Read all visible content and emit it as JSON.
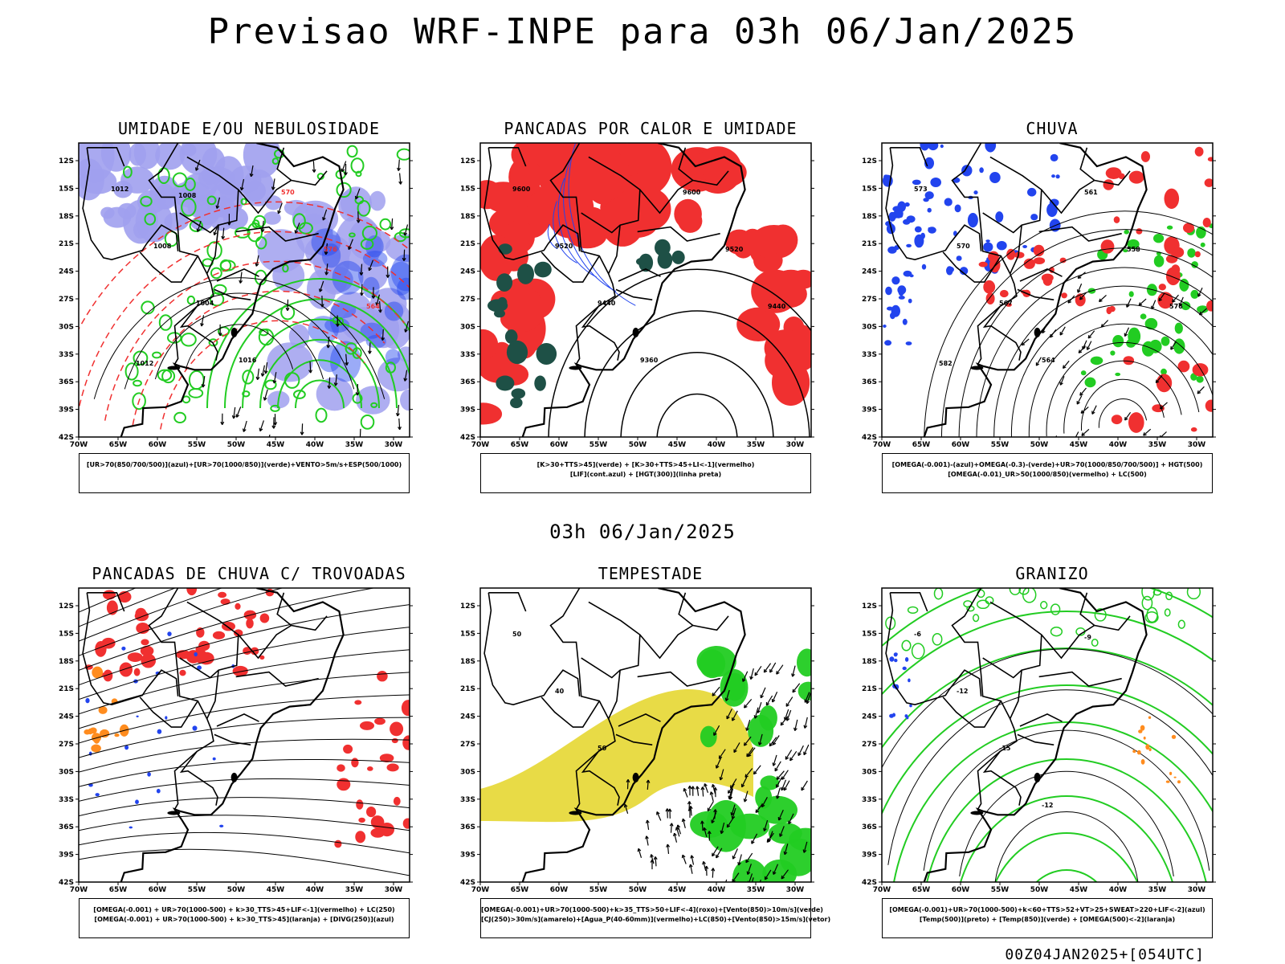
{
  "title": "Previsao WRF-INPE  para 03h 06/Jan/2025",
  "mid_title": "03h 06/Jan/2025",
  "footer": "00Z04JAN2025+[054UTC]",
  "axes": {
    "lat_ticks": [
      "12S",
      "15S",
      "18S",
      "21S",
      "24S",
      "27S",
      "30S",
      "33S",
      "36S",
      "39S",
      "42S"
    ],
    "lon_ticks": [
      "70W",
      "65W",
      "60W",
      "55W",
      "50W",
      "45W",
      "40W",
      "35W",
      "30W"
    ]
  },
  "colors": {
    "blue": "#2244ee",
    "light_blue": "#a0a0ee",
    "green": "#22cc22",
    "red": "#f03030",
    "dark_teal": "#1e5046",
    "yellow": "#e6d732",
    "orange": "#ff8c1e",
    "black": "#000000"
  },
  "panels": [
    {
      "title": "UMIDADE E/OU NEBULOSIDADE",
      "legend": [
        "[UR>70(850/700/500)](azul)+[UR>70(1000/850)](verde)+VENTO>5m/s+ESP(500/1000)"
      ],
      "contour_labels": [
        "1012",
        "1008",
        "1004",
        "1016",
        "570",
        "576",
        "564",
        "1012",
        "1008"
      ]
    },
    {
      "title": "PANCADAS POR CALOR E UMIDADE",
      "legend": [
        "[K>30+TTS>45](verde)  +  [K>30+TTS>45+LI<-1](vermelho)",
        "[LIF](cont.azul)  +  [HGT(300)](linha preta)"
      ],
      "contour_labels": [
        "9600",
        "9520",
        "9440",
        "9360",
        "9600",
        "9520",
        "9440"
      ]
    },
    {
      "title": "CHUVA",
      "legend": [
        "[OMEGA(-0.001)-(azul)+OMEGA(-0.3)-(verde)+UR>70(1000/850/700/500)]  +  HGT(500)",
        "[OMEGA(-0.01)_UR>50(1000/850)(vermelho)  +  LC(500)"
      ],
      "contour_labels": [
        "573",
        "570",
        "567",
        "564",
        "561",
        "558",
        "576",
        "582"
      ]
    },
    {
      "title": "PANCADAS DE CHUVA C/ TROVOADAS",
      "legend": [
        "[OMEGA(-0.001)  +  UR>70(1000-500)  +  k>30_TTS>45+LIF<-1](vermelho)  +  LC(250)",
        "[OMEGA(-0.001)  +  UR>70(1000-500)  +  k>30_TTS>45](laranja)  +  [DIVG(250)](azul)"
      ],
      "contour_labels": []
    },
    {
      "title": "TEMPESTADE",
      "legend": [
        "[OMEGA(-0.001)+UR>70(1000-500)+k>35_TTS>50+LIF<-4](roxo)+[Vento(850)>10m/s](verde)",
        "[CJ(250)>30m/s](amarelo)+[Agua_P(40-60mm)](vermelho)+LC(850)+[Vento(850)>15m/s](vetor)"
      ],
      "contour_labels": [
        "50",
        "40",
        "50"
      ]
    },
    {
      "title": "GRANIZO",
      "legend": [
        "[OMEGA(-0.001)+UR>70(1000-500)+k<60+TTS>52+VT>25+SWEAT>220+LIF<-2](azul)",
        "[Temp(500)](preto)  +  [Temp(850)](verde)  +  [OMEGA(500)<-2](laranja)"
      ],
      "contour_labels": [
        "-6",
        "-12",
        "-15",
        "-12",
        "-9"
      ]
    }
  ],
  "chart_data": [
    {
      "type": "heatmap",
      "title": "UMIDADE E/OU NEBULOSIDADE",
      "xlabel": "",
      "ylabel": "",
      "xlim": [
        "70W",
        "30W"
      ],
      "ylim": [
        "12S",
        "42S"
      ],
      "series": [
        {
          "name": "UR>70(850/700/500)",
          "color": "azul"
        },
        {
          "name": "UR>70(1000/850)",
          "color": "verde"
        },
        {
          "name": "VENTO>5m/s",
          "color": "vetor"
        },
        {
          "name": "ESP(500/1000)",
          "color": "vermelho"
        }
      ]
    },
    {
      "type": "heatmap",
      "title": "PANCADAS POR CALOR E UMIDADE",
      "xlim": [
        "70W",
        "30W"
      ],
      "ylim": [
        "12S",
        "42S"
      ],
      "series": [
        {
          "name": "K>30+TTS>45",
          "color": "verde"
        },
        {
          "name": "K>30+TTS>45+LI<-1",
          "color": "vermelho"
        },
        {
          "name": "LIF",
          "color": "cont.azul"
        },
        {
          "name": "HGT(300)",
          "color": "linha preta"
        }
      ]
    },
    {
      "type": "heatmap",
      "title": "CHUVA",
      "xlim": [
        "70W",
        "30W"
      ],
      "ylim": [
        "12S",
        "42S"
      ],
      "series": [
        {
          "name": "OMEGA(-0.001)",
          "color": "azul"
        },
        {
          "name": "OMEGA(-0.3)",
          "color": "verde"
        },
        {
          "name": "OMEGA(-0.01)_UR>50",
          "color": "vermelho"
        },
        {
          "name": "HGT(500)",
          "color": "preto"
        }
      ]
    },
    {
      "type": "heatmap",
      "title": "PANCADAS DE CHUVA C/ TROVOADAS",
      "xlim": [
        "70W",
        "30W"
      ],
      "ylim": [
        "12S",
        "42S"
      ],
      "series": [
        {
          "name": "k>30_TTS>45+LIF<-1",
          "color": "vermelho"
        },
        {
          "name": "k>30_TTS>45",
          "color": "laranja"
        },
        {
          "name": "DIVG(250)",
          "color": "azul"
        },
        {
          "name": "LC(250)",
          "color": "preto"
        }
      ]
    },
    {
      "type": "heatmap",
      "title": "TEMPESTADE",
      "xlim": [
        "70W",
        "30W"
      ],
      "ylim": [
        "12S",
        "42S"
      ],
      "series": [
        {
          "name": "k>35_TTS>50+LIF<-4",
          "color": "roxo"
        },
        {
          "name": "Vento(850)>10m/s",
          "color": "verde"
        },
        {
          "name": "CJ(250)>30m/s",
          "color": "amarelo"
        },
        {
          "name": "Agua_P(40-60mm)",
          "color": "vermelho"
        },
        {
          "name": "Vento(850)>15m/s",
          "color": "vetor"
        }
      ]
    },
    {
      "type": "heatmap",
      "title": "GRANIZO",
      "xlim": [
        "70W",
        "30W"
      ],
      "ylim": [
        "12S",
        "42S"
      ],
      "series": [
        {
          "name": "SWEAT>220+LIF<-2",
          "color": "azul"
        },
        {
          "name": "Temp(500)",
          "color": "preto"
        },
        {
          "name": "Temp(850)",
          "color": "verde"
        },
        {
          "name": "OMEGA(500)<-2",
          "color": "laranja"
        }
      ]
    }
  ]
}
